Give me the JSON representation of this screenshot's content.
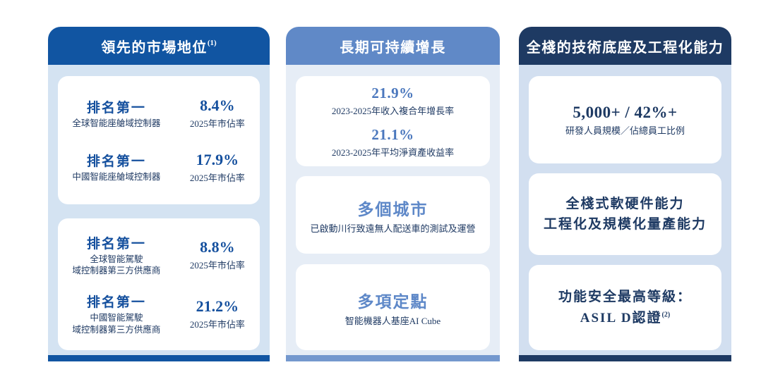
{
  "columns": [
    {
      "header": {
        "title": "領先的市場地位",
        "sup": "(1)"
      },
      "colors": {
        "header_bg": "#1155a2",
        "panel_bg": "#d4e3f2",
        "bar": "#1155a2",
        "accent": "#15509e",
        "caption": "#1f3a63"
      },
      "cards": [
        {
          "entries": [
            {
              "title": "排名第一",
              "subtitle": "全球智能座艙域控制器",
              "value": "8.4%",
              "caption": "2025年市佔率"
            },
            {
              "title": "排名第一",
              "subtitle": "中國智能座艙域控制器",
              "value": "17.9%",
              "caption": "2025年市佔率"
            }
          ]
        },
        {
          "entries": [
            {
              "title": "排名第一",
              "subtitle": "全球智能駕駛\n域控制器第三方供應商",
              "value": "8.8%",
              "caption": "2025年市佔率"
            },
            {
              "title": "排名第一",
              "subtitle": "中國智能駕駛\n域控制器第三方供應商",
              "value": "21.2%",
              "caption": "2025年市佔率"
            }
          ]
        }
      ]
    },
    {
      "header": {
        "title": "長期可持續增長",
        "sup": ""
      },
      "colors": {
        "header_bg": "#6089c7",
        "panel_bg": "#e6edf6",
        "bar": "#7498ce",
        "value": "#4a77bd",
        "value_big": "#5e88c8",
        "caption": "#1f3a63"
      },
      "cards": [
        {
          "stats": [
            {
              "value": "21.9%",
              "caption": "2023-2025年收入複合年增長率"
            },
            {
              "value": "21.1%",
              "caption": "2023-2025年平均淨資產收益率"
            }
          ]
        },
        {
          "stats": [
            {
              "value": "多個城市",
              "caption": "已啟動川行致遠無人配送車的測試及運營"
            }
          ]
        },
        {
          "stats": [
            {
              "value": "多項定點",
              "caption": "智能機器人基座AI Cube"
            }
          ]
        }
      ]
    },
    {
      "header": {
        "title": "全棧的技術底座及工程化能力",
        "sup": ""
      },
      "colors": {
        "header_bg": "#1e3a63",
        "panel_bg": "#d2dff0",
        "bar": "#1e3a63",
        "accent": "#1e3a63",
        "caption": "#1f3a63"
      },
      "cards": [
        {
          "stats": [
            {
              "value": "5,000+ / 42%+",
              "caption": "研發人員規模／佔總員工比例"
            }
          ]
        },
        {
          "lines": [
            "全棧式軟硬件能力",
            "工程化及規模化量產能力"
          ],
          "sup": ""
        },
        {
          "lines": [
            "功能安全最高等級：",
            "ASIL D認證"
          ],
          "sup": "(2)"
        }
      ]
    }
  ]
}
